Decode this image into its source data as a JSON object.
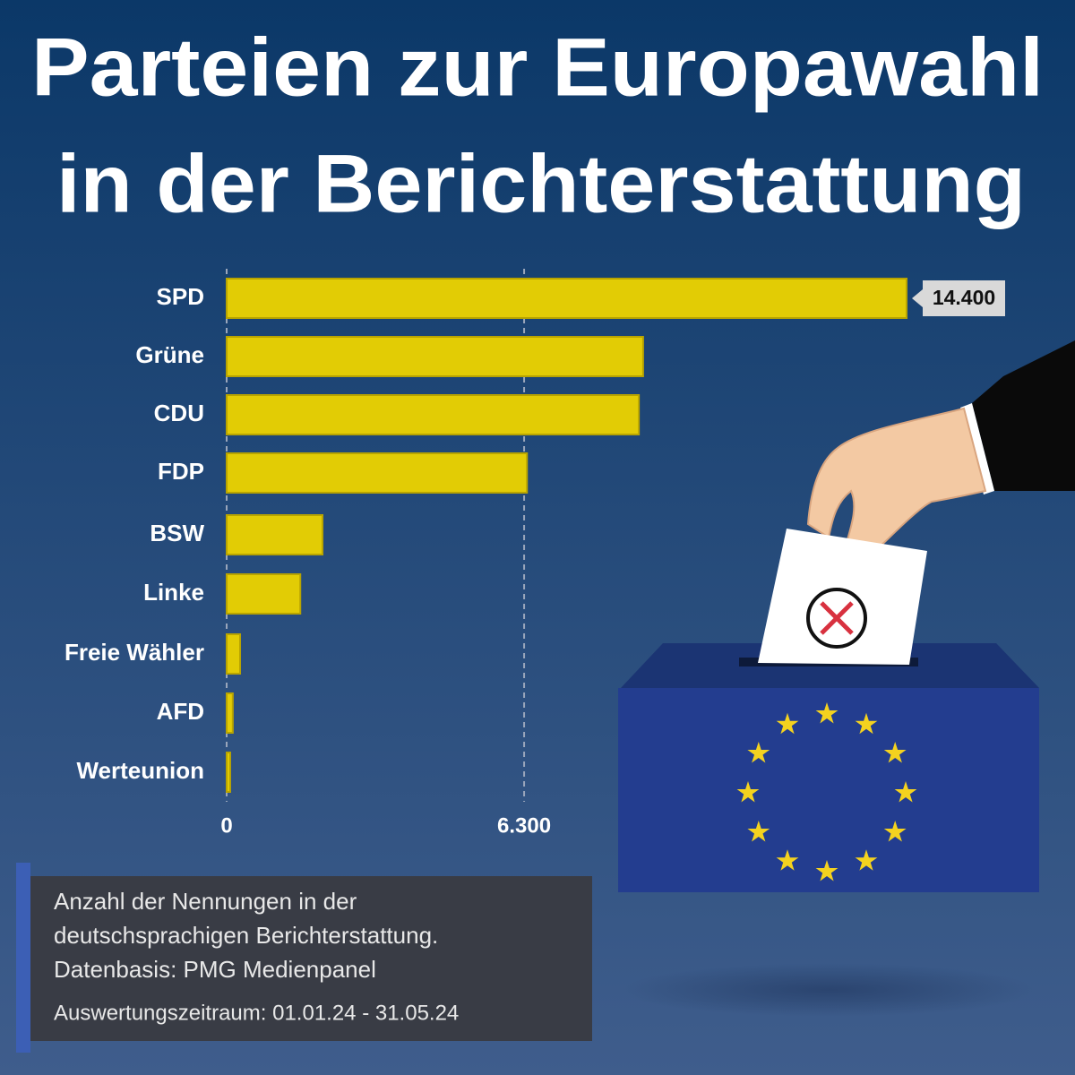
{
  "chart_data": {
    "type": "hbar",
    "title_lines": [
      "Parteien zur Europawahl",
      "in der Berichterstattung"
    ],
    "categories": [
      "SPD",
      "Grüne",
      "CDU",
      "FDP",
      "BSW",
      "Linke",
      "Freie Wähler",
      "AFD",
      "Werteunion"
    ],
    "values": [
      14400,
      8820,
      8730,
      6360,
      2030,
      1560,
      285,
      130,
      75
    ],
    "value_labels": [
      "14.400",
      null,
      null,
      null,
      null,
      null,
      null,
      null,
      null
    ],
    "color": "#e2cc05",
    "xlim": [
      0,
      14400
    ],
    "xticks": [
      0,
      {
        "value": 6300,
        "label": "6.300"
      }
    ],
    "notes": [
      "Anzahl der Nennungen in der",
      "deutschsprachigen Berichterstattung.",
      "Datenbasis: PMG Medienpanel",
      "Auswertungszeitraum: 01.01.24 - 31.05.24"
    ]
  }
}
